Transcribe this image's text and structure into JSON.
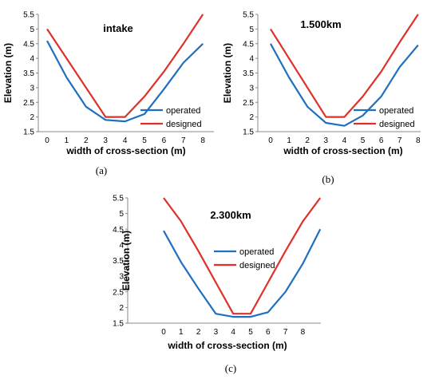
{
  "chart_data": [
    {
      "type": "line",
      "caption": "(a)",
      "title": "intake",
      "xlabel": "width of cross-section (m)",
      "ylabel": "Elevation (m)",
      "ylim": [
        1.5,
        5.5
      ],
      "yticks": [
        "1.5",
        "2",
        "2.5",
        "3",
        "3.5",
        "4",
        "4.5",
        "5",
        "5.5"
      ],
      "xticks": [
        "0",
        "1",
        "2",
        "3",
        "4",
        "5",
        "6",
        "7",
        "8"
      ],
      "legend_position": "bottom-right",
      "series": [
        {
          "name": "operated",
          "color": "#1f6fc0",
          "x": [
            0,
            1,
            2,
            3,
            4,
            5,
            6,
            7,
            8
          ],
          "y": [
            4.6,
            3.35,
            2.35,
            1.9,
            1.85,
            2.1,
            2.95,
            3.85,
            4.5
          ]
        },
        {
          "name": "designed",
          "color": "#e0302a",
          "x": [
            0,
            3,
            4,
            5,
            6,
            7,
            8
          ],
          "y": [
            5.0,
            2.0,
            2.0,
            2.7,
            3.55,
            4.5,
            5.5
          ]
        }
      ]
    },
    {
      "type": "line",
      "caption": "(b)",
      "title": "1.500km",
      "xlabel": "width of cross-section (m)",
      "ylabel": "Elevation (m)",
      "ylim": [
        1.5,
        5.5
      ],
      "yticks": [
        "1.5",
        "2",
        "2.5",
        "3",
        "3.5",
        "4",
        "4.5",
        "5",
        "5.5"
      ],
      "xticks": [
        "0",
        "1",
        "2",
        "3",
        "4",
        "5",
        "6",
        "7",
        "8"
      ],
      "legend_position": "bottom-right",
      "series": [
        {
          "name": "operated",
          "color": "#1f6fc0",
          "x": [
            0,
            1,
            2,
            3,
            4,
            5,
            6,
            7,
            8
          ],
          "y": [
            4.5,
            3.35,
            2.35,
            1.8,
            1.7,
            2.05,
            2.7,
            3.7,
            4.45
          ]
        },
        {
          "name": "designed",
          "color": "#e0302a",
          "x": [
            0,
            3,
            4,
            5,
            6,
            7,
            8
          ],
          "y": [
            5.0,
            2.0,
            2.0,
            2.7,
            3.55,
            4.55,
            5.5
          ]
        }
      ]
    },
    {
      "type": "line",
      "caption": "(c)",
      "title": "2.300km",
      "xlabel": "width of cross-section (m)",
      "ylabel": "Elevation (m)",
      "ylim": [
        1.5,
        5.5
      ],
      "yticks": [
        "1.5",
        "2",
        "2.5",
        "3",
        "3.5",
        "4",
        "4.5",
        "5",
        "5.5"
      ],
      "xticks": [
        "0",
        "1",
        "2",
        "3",
        "4",
        "5",
        "6",
        "7",
        "8"
      ],
      "legend_position": "top-center",
      "series": [
        {
          "name": "operated",
          "color": "#1f6fc0",
          "x": [
            0,
            1,
            2,
            3,
            4,
            5,
            6,
            7,
            8,
            9
          ],
          "y": [
            4.45,
            3.45,
            2.6,
            1.8,
            1.7,
            1.7,
            1.85,
            2.5,
            3.4,
            4.5
          ]
        },
        {
          "name": "designed",
          "color": "#e0302a",
          "x": [
            0,
            1,
            2,
            3,
            4,
            5,
            6,
            7,
            8,
            9
          ],
          "y": [
            5.5,
            4.75,
            3.8,
            2.8,
            1.8,
            1.8,
            2.8,
            3.8,
            4.75,
            5.5
          ]
        }
      ]
    }
  ]
}
